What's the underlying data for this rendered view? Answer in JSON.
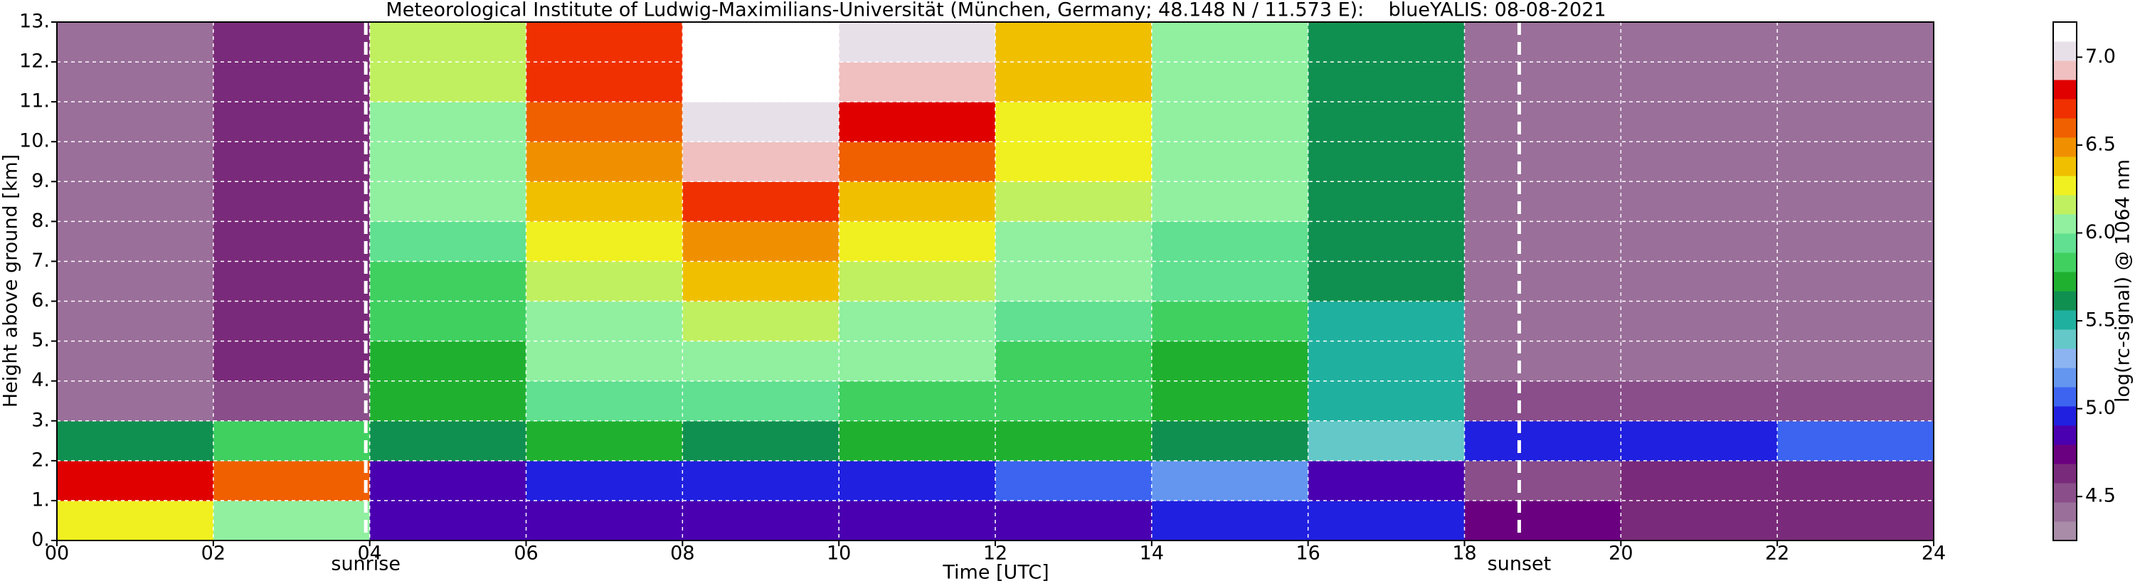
{
  "chart_data": {
    "type": "heatmap",
    "title": "Meteorological Institute of Ludwig-Maximilians-Universität (München, Germany; 48.148 N / 11.573 E):    blueYALIS: 08-08-2021",
    "x_label": "Time [UTC]",
    "y_label": "Height above ground [km]",
    "colorbar_label": "log(rc-signal) @ 1064 nm",
    "xlim": [
      0,
      24
    ],
    "ylim": [
      0,
      13
    ],
    "xticks": [
      {
        "value": 0,
        "label": "00"
      },
      {
        "value": 2,
        "label": "02"
      },
      {
        "value": 4,
        "label": "04"
      },
      {
        "value": 6,
        "label": "06"
      },
      {
        "value": 8,
        "label": "08"
      },
      10,
      12,
      14,
      16,
      18,
      20,
      22,
      24
    ],
    "yticks": [
      {
        "value": 0,
        "label": "0."
      },
      {
        "value": 1,
        "label": "1."
      },
      {
        "value": 2,
        "label": "2."
      },
      {
        "value": 3,
        "label": "3."
      },
      {
        "value": 4,
        "label": "4."
      },
      {
        "value": 5,
        "label": "5."
      },
      {
        "value": 6,
        "label": "6."
      },
      {
        "value": 7,
        "label": "7."
      },
      {
        "value": 8,
        "label": "8."
      },
      {
        "value": 9,
        "label": "9."
      },
      {
        "value": 10,
        "label": "10."
      },
      {
        "value": 11,
        "label": "11."
      },
      {
        "value": 12,
        "label": "12."
      },
      {
        "value": 13,
        "label": "13."
      }
    ],
    "xbins": [
      0,
      2,
      4,
      6,
      8,
      10,
      12,
      14,
      16,
      18,
      20,
      22,
      24
    ],
    "ybins": [
      0,
      1,
      2,
      3,
      4,
      5,
      6,
      7,
      8,
      9,
      10,
      11,
      12,
      13
    ],
    "z": [
      [
        6.3,
        6.1,
        4.9,
        4.8,
        4.8,
        4.8,
        4.9,
        5.0,
        5.0,
        4.7,
        4.6,
        4.6
      ],
      [
        6.8,
        6.6,
        4.9,
        5.0,
        5.0,
        5.0,
        5.1,
        5.2,
        4.9,
        4.5,
        4.6,
        4.6
      ],
      [
        5.6,
        5.8,
        5.6,
        5.7,
        5.6,
        5.7,
        5.7,
        5.6,
        5.4,
        5.0,
        5.0,
        5.1
      ],
      [
        4.4,
        4.5,
        5.7,
        5.9,
        5.9,
        5.8,
        5.8,
        5.7,
        5.5,
        4.5,
        4.5,
        4.5
      ],
      [
        4.4,
        4.6,
        5.7,
        6.0,
        6.1,
        6.0,
        5.8,
        5.7,
        5.5,
        4.4,
        4.4,
        4.4
      ],
      [
        4.4,
        4.6,
        5.8,
        6.1,
        6.2,
        6.1,
        5.9,
        5.8,
        5.5,
        4.4,
        4.4,
        4.4
      ],
      [
        4.4,
        4.6,
        5.8,
        6.2,
        6.4,
        6.2,
        6.0,
        5.9,
        5.6,
        4.4,
        4.4,
        4.4
      ],
      [
        4.4,
        4.6,
        5.9,
        6.3,
        6.5,
        6.3,
        6.1,
        5.9,
        5.6,
        4.4,
        4.4,
        4.4
      ],
      [
        4.4,
        4.6,
        6.0,
        6.4,
        6.7,
        6.4,
        6.2,
        6.0,
        5.6,
        4.4,
        4.4,
        4.4
      ],
      [
        4.4,
        4.6,
        6.1,
        6.5,
        6.9,
        6.6,
        6.3,
        6.0,
        5.6,
        4.4,
        4.4,
        4.4
      ],
      [
        4.4,
        4.6,
        6.1,
        6.6,
        7.0,
        6.8,
        6.3,
        6.0,
        5.6,
        4.4,
        4.4,
        4.4
      ],
      [
        4.4,
        4.6,
        6.2,
        6.7,
        7.1,
        6.9,
        6.4,
        6.0,
        5.6,
        4.4,
        4.4,
        4.4
      ],
      [
        4.4,
        4.6,
        6.2,
        6.7,
        7.1,
        7.0,
        6.4,
        6.0,
        5.6,
        4.4,
        4.4,
        4.4
      ]
    ],
    "clim": [
      4.25,
      7.2
    ],
    "cticks": [
      4.5,
      5.0,
      5.5,
      6.0,
      6.5,
      7.0
    ],
    "colorscale": [
      "#a88ca8",
      "#9a6f9a",
      "#8a4e8a",
      "#7a2a7a",
      "#6a0080",
      "#4a00b0",
      "#2020e0",
      "#3c64f0",
      "#6496f0",
      "#8cb4f0",
      "#64c8c8",
      "#20b0a0",
      "#109050",
      "#20b030",
      "#40d060",
      "#60e090",
      "#90f0a0",
      "#c0f060",
      "#f0f020",
      "#f0c000",
      "#f09000",
      "#f06000",
      "#f03000",
      "#e00000",
      "#f0c0c0",
      "#e8e0e8",
      "#ffffff"
    ],
    "grid": true,
    "annotations": [
      {
        "x": 3.95,
        "label": "sunrise"
      },
      {
        "x": 18.7,
        "label": "sunset"
      }
    ]
  }
}
